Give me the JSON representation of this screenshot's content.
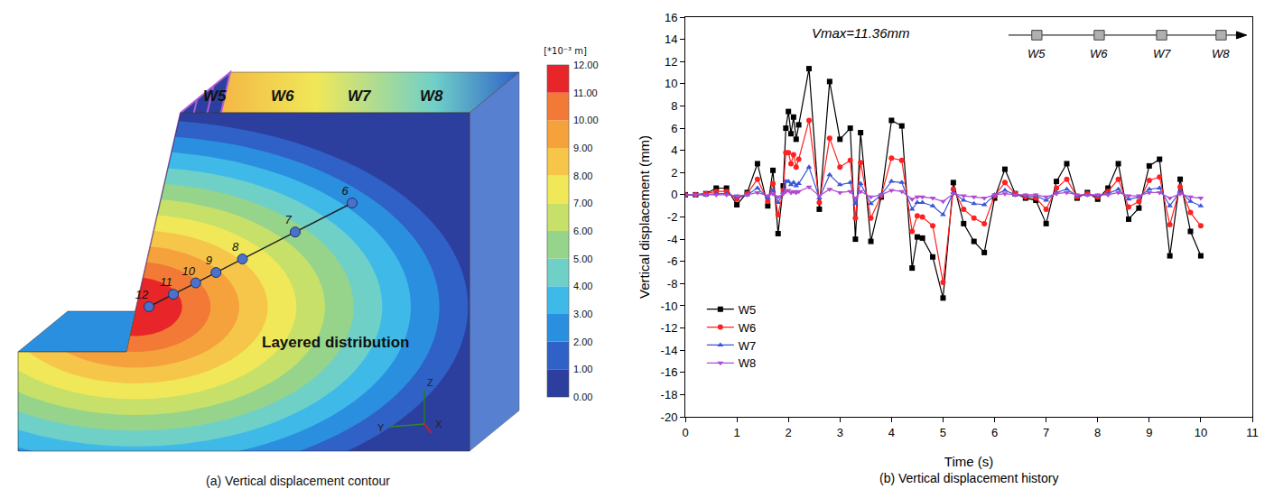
{
  "contour": {
    "caption": "(a) Vertical displacement contour",
    "unit": "[*10⁻³ m]",
    "colorbar": {
      "range": [
        0,
        12
      ],
      "ticks": [
        {
          "value": 0,
          "label": "0.00"
        },
        {
          "value": 1,
          "label": "1.00"
        },
        {
          "value": 2,
          "label": "2.00"
        },
        {
          "value": 3,
          "label": "3.00"
        },
        {
          "value": 4,
          "label": "4.00"
        },
        {
          "value": 5,
          "label": "5.00"
        },
        {
          "value": 6,
          "label": "6.00"
        },
        {
          "value": 7,
          "label": "7.00"
        },
        {
          "value": 8,
          "label": "8.00"
        },
        {
          "value": 9,
          "label": "9.00"
        },
        {
          "value": 10,
          "label": "10.00"
        },
        {
          "value": 11,
          "label": "11.00"
        },
        {
          "value": 12,
          "label": "12.00"
        }
      ],
      "colors": [
        "#2c3f9e",
        "#2f61c6",
        "#2b8fe0",
        "#3fbae8",
        "#6fd0c8",
        "#95d48a",
        "#c6e06a",
        "#f0e858",
        "#f6c64a",
        "#f6a23c",
        "#f27a36",
        "#e8262a"
      ]
    },
    "surface_labels": [
      "W5",
      "W6",
      "W7",
      "W8"
    ],
    "points": [
      12,
      11,
      10,
      9,
      8,
      7,
      6
    ],
    "annotation": "Layered distribution",
    "axes": [
      "Z",
      "Y",
      "X"
    ]
  },
  "chart_data": {
    "type": "line",
    "title": "(b) Vertical displacement history",
    "x_label": "Time (s)",
    "y_label": "Vertical displacement (mm)",
    "annotations": [
      "Vmax=11.36mm"
    ],
    "x": [
      0,
      0.2,
      0.4,
      0.6,
      0.8,
      1.0,
      1.2,
      1.4,
      1.6,
      1.7,
      1.8,
      1.9,
      1.95,
      2.0,
      2.05,
      2.1,
      2.15,
      2.2,
      2.4,
      2.6,
      2.8,
      3.0,
      3.2,
      3.3,
      3.4,
      3.6,
      3.8,
      4.0,
      4.2,
      4.4,
      4.5,
      4.6,
      4.8,
      5.0,
      5.2,
      5.4,
      5.6,
      5.8,
      6.0,
      6.2,
      6.4,
      6.6,
      6.8,
      7.0,
      7.2,
      7.4,
      7.6,
      7.8,
      8.0,
      8.2,
      8.4,
      8.6,
      8.8,
      9.0,
      9.2,
      9.4,
      9.6,
      9.8,
      10.0
    ],
    "series": [
      {
        "name": "W5",
        "color": "#000000",
        "marker": "square",
        "line_style": "solid",
        "values": [
          0,
          0,
          0.1,
          0.6,
          0.6,
          -0.9,
          0.2,
          2.8,
          -1.0,
          2.2,
          -3.5,
          0.8,
          6.0,
          7.5,
          5.5,
          7.0,
          5.0,
          6.3,
          11.36,
          -1.3,
          10.2,
          5.0,
          6.0,
          -4.0,
          5.6,
          -4.2,
          -0.2,
          6.7,
          6.2,
          -6.6,
          -3.8,
          -3.9,
          -5.6,
          -9.3,
          1.1,
          -2.6,
          -4.2,
          -5.2,
          -0.3,
          2.3,
          0.1,
          -0.3,
          -0.5,
          -2.6,
          1.2,
          2.8,
          -0.3,
          0.2,
          -0.4,
          0.6,
          2.8,
          -2.2,
          -1.2,
          2.6,
          3.2,
          -5.5,
          1.4,
          -3.3,
          -5.5
        ]
      },
      {
        "name": "W6",
        "color": "#ff2020",
        "marker": "circle",
        "line_style": "solid",
        "values": [
          0,
          0,
          0.1,
          0.3,
          0.3,
          -0.4,
          0.1,
          1.4,
          -0.6,
          1.0,
          -1.8,
          0.4,
          3.8,
          3.8,
          2.8,
          3.6,
          2.5,
          3.2,
          6.7,
          -0.7,
          5.1,
          2.5,
          3.1,
          -2.1,
          2.9,
          -2.1,
          -0.1,
          3.3,
          3.1,
          -3.3,
          -1.9,
          -2.0,
          -2.8,
          -7.9,
          0.5,
          -1.3,
          -2.1,
          -2.6,
          -0.1,
          1.1,
          0.1,
          -0.2,
          -0.3,
          -1.3,
          0.6,
          1.4,
          -0.2,
          0.1,
          -0.2,
          0.3,
          1.4,
          -1.1,
          -0.6,
          1.3,
          1.6,
          -2.7,
          0.7,
          -1.6,
          -2.8
        ]
      },
      {
        "name": "W7",
        "color": "#3a56d8",
        "marker": "triangle-up",
        "line_style": "solid",
        "values": [
          0,
          0,
          0,
          0.1,
          0.1,
          -0.2,
          0,
          0.6,
          -0.3,
          0.4,
          -0.7,
          0.2,
          1.2,
          1.2,
          0.9,
          1.1,
          0.8,
          1.0,
          2.5,
          -0.3,
          1.8,
          0.9,
          1.1,
          -0.8,
          1.0,
          -0.8,
          0,
          1.2,
          1.1,
          -1.3,
          -0.7,
          -0.7,
          -1.0,
          -1.8,
          0.2,
          -0.5,
          -0.8,
          -0.9,
          0,
          0.4,
          0,
          -0.1,
          -0.1,
          -0.5,
          0.2,
          0.5,
          -0.1,
          0,
          -0.1,
          0.1,
          0.5,
          -0.4,
          -0.2,
          0.5,
          0.6,
          -1.0,
          0.3,
          -0.6,
          -1.0
        ]
      },
      {
        "name": "W8",
        "color": "#b04ad0",
        "marker": "triangle-down",
        "line_style": "solid",
        "values": [
          0,
          0,
          0,
          0,
          0,
          -0.1,
          0,
          0.2,
          -0.1,
          0.1,
          -0.2,
          0.1,
          0.3,
          0.4,
          0.2,
          0.3,
          0.2,
          0.3,
          0.7,
          -0.1,
          0.5,
          0.2,
          0.3,
          -0.3,
          0.3,
          -0.2,
          0,
          0.4,
          0.3,
          -0.4,
          -0.2,
          -0.2,
          -0.3,
          -0.6,
          0.1,
          -0.1,
          -0.2,
          -0.3,
          0,
          0.1,
          0,
          0,
          0,
          -0.2,
          0.1,
          0.2,
          0,
          0,
          0,
          0,
          0.2,
          -0.1,
          -0.1,
          0.2,
          0.2,
          -0.3,
          0.1,
          -0.2,
          -0.3
        ]
      }
    ],
    "xlim": [
      0,
      11
    ],
    "xticks": [
      0,
      1,
      2,
      3,
      4,
      5,
      6,
      7,
      8,
      9,
      10,
      11
    ],
    "ylim": [
      -20,
      16
    ],
    "yticks": [
      -20,
      -18,
      -16,
      -14,
      -12,
      -10,
      -8,
      -6,
      -4,
      -2,
      0,
      2,
      4,
      6,
      8,
      10,
      12,
      14,
      16
    ],
    "grid": false,
    "legend": "lower left"
  }
}
